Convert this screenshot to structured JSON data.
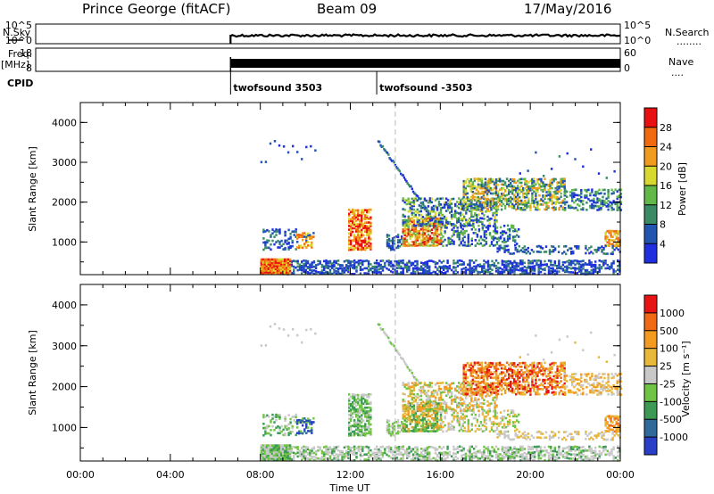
{
  "header": {
    "station": "Prince George (fitACF)",
    "beam": "Beam 09",
    "date": "17/May/2016"
  },
  "colors": {
    "power": [
      "#1f2fe0",
      "#2255b0",
      "#3b8a66",
      "#63b84a",
      "#d7d830",
      "#f09a20",
      "#f06a10",
      "#e81010"
    ],
    "velocity": [
      "#2a3fc8",
      "#2f6a9a",
      "#3c9a55",
      "#70c445",
      "#c8c8c8",
      "#e8b83a",
      "#f39a20",
      "#f06a14",
      "#e81414"
    ]
  },
  "chart_data": [
    {
      "type": "line",
      "name": "nsky-panel",
      "ylabel_left": [
        "N.Sky",
        ""
      ],
      "ylabel_right": [
        "N.Search",
        "........"
      ],
      "yticks_left": [
        "10^5",
        "10^0"
      ],
      "yticks_right": [
        "10^5",
        "10^0"
      ],
      "x_range_hours": [
        0,
        24
      ],
      "data_start_hour": 8
    },
    {
      "type": "line",
      "name": "freq-nave-panel",
      "ylabel_left": [
        "Freq.",
        "[MHz]"
      ],
      "ylabel_right": [
        "Nave",
        "...."
      ],
      "yticks_left": [
        "18",
        "8"
      ],
      "yticks_right": [
        "60",
        "0"
      ],
      "x_range_hours": [
        0,
        24
      ],
      "data_start_hour": 8
    },
    {
      "type": "table",
      "name": "cpid-panel",
      "label": "CPID",
      "segments": [
        {
          "start_hour": 8,
          "label": "twofsound 3503"
        },
        {
          "start_hour": 14,
          "label": "twofsound -3503"
        }
      ]
    },
    {
      "type": "heatmap",
      "name": "power-panel",
      "ylabel": "Slant Range [km]",
      "yticks": [
        "1000",
        "2000",
        "3000",
        "4000"
      ],
      "ylim": [
        180,
        4500
      ],
      "colorbar_label": "Power [dB]",
      "colorbar_ticks": [
        "4",
        "8",
        "12",
        "16",
        "20",
        "24",
        "28"
      ],
      "colorbar_range": [
        0,
        32
      ]
    },
    {
      "type": "heatmap",
      "name": "velocity-panel",
      "ylabel": "Slant Range [km]",
      "yticks": [
        "1000",
        "2000",
        "3000",
        "4000"
      ],
      "ylim": [
        180,
        4500
      ],
      "colorbar_label": "Velocity [m s⁻¹]",
      "colorbar_ticks": [
        "1000",
        "500",
        "100",
        "25",
        "-25",
        "-100",
        "-500",
        "-1000"
      ]
    }
  ],
  "xaxis": {
    "label": "Time UT",
    "ticks": [
      "00:00",
      "04:00",
      "08:00",
      "12:00",
      "16:00",
      "20:00",
      "00:00"
    ],
    "tick_hours": [
      0,
      4,
      8,
      12,
      16,
      20,
      24
    ]
  }
}
